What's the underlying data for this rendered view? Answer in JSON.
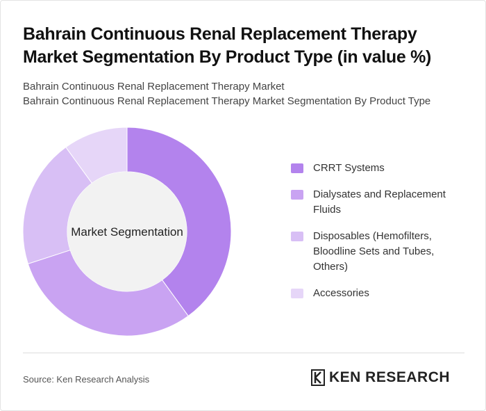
{
  "header": {
    "title": "Bahrain Continuous Renal Replacement Therapy Market Segmentation By Product Type (in value %)",
    "subtitle_line1": "Bahrain Continuous Renal Replacement Therapy Market",
    "subtitle_line2": "Bahrain Continuous Renal Replacement Therapy Market Segmentation By Product Type"
  },
  "chart_data": {
    "type": "pie",
    "donut": true,
    "center_label": "Market Segmentation",
    "categories": [
      "CRRT Systems",
      "Dialysates and Replacement Fluids",
      "Disposables (Hemofilters, Bloodline Sets and Tubes, Others)",
      "Accessories"
    ],
    "values": [
      40,
      30,
      20,
      10
    ],
    "colors": [
      "#b383ed",
      "#c9a3f2",
      "#d8bff5",
      "#e6d6f8"
    ],
    "legend_position": "right"
  },
  "footer": {
    "source": "Source: Ken Research Analysis",
    "brand": "KEN RESEARCH"
  }
}
